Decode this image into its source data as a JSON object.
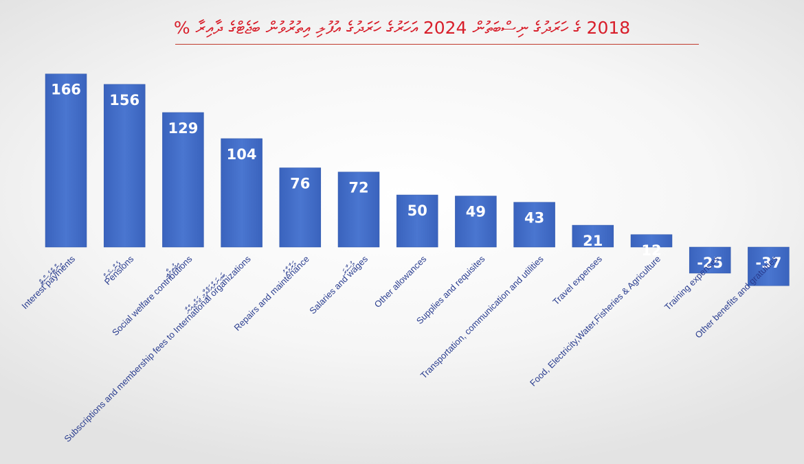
{
  "title": "2018 ގެ ހަރަދުގެ ނިސްބަތުން 2024 އަހަރުގެ ހަރަދުގެ އުފުލި އިތުރުވުން ބަޖެޓްގެ ދާއިރާ %",
  "colors": {
    "title": "#d81e2a",
    "bar": "#3a66c4",
    "bar_light": "#5a86da",
    "label": "#2a3d8f"
  },
  "chart_data": {
    "type": "bar",
    "title": "2018 ގެ ހަރަދުގެ ނިސްބަތުން 2024 އަހަރުގެ ހަރަދުގެ އުފުލި އިތުރުވުން ބަޖެޓްގެ ދާއިރާ %",
    "xlabel": "",
    "ylabel": "",
    "ylim": [
      -40,
      175
    ],
    "grid": false,
    "legend": "none",
    "categories": [
      "Interest payments",
      "Pensions",
      "Social welfare contributions",
      "Subscriptions and membership fees to International organizations",
      "Repairs and maintenance",
      "Salaries and wages",
      "Other allowances",
      "Supplies and requisites",
      "Transportation, communication and utilities",
      "Travel expenses",
      "Food, Electricity,Water,Fisheries & Agriculture",
      "Training expenses",
      "Other benefits and gratuities"
    ],
    "categories_dv": [
      "އިންޓްރެސްޓް",
      "ޕެންޝަން",
      "އިޖުތިމާޢީ",
      "",
      "މަރާމާތު",
      "މުސާރަ",
      "",
      "",
      "",
      "",
      "",
      "",
      ""
    ],
    "categories_dv2": [
      "",
      "",
      "",
      "ބައިނަލްއަޤްވާމީ ޖަމްޢިއްޔާ",
      "",
      "",
      "",
      "",
      "",
      "",
      "",
      "",
      ""
    ],
    "series": [
      {
        "values": [
          166,
          156,
          129,
          104,
          76,
          72,
          50,
          49,
          43,
          21,
          12,
          -25,
          -37
        ]
      }
    ]
  }
}
